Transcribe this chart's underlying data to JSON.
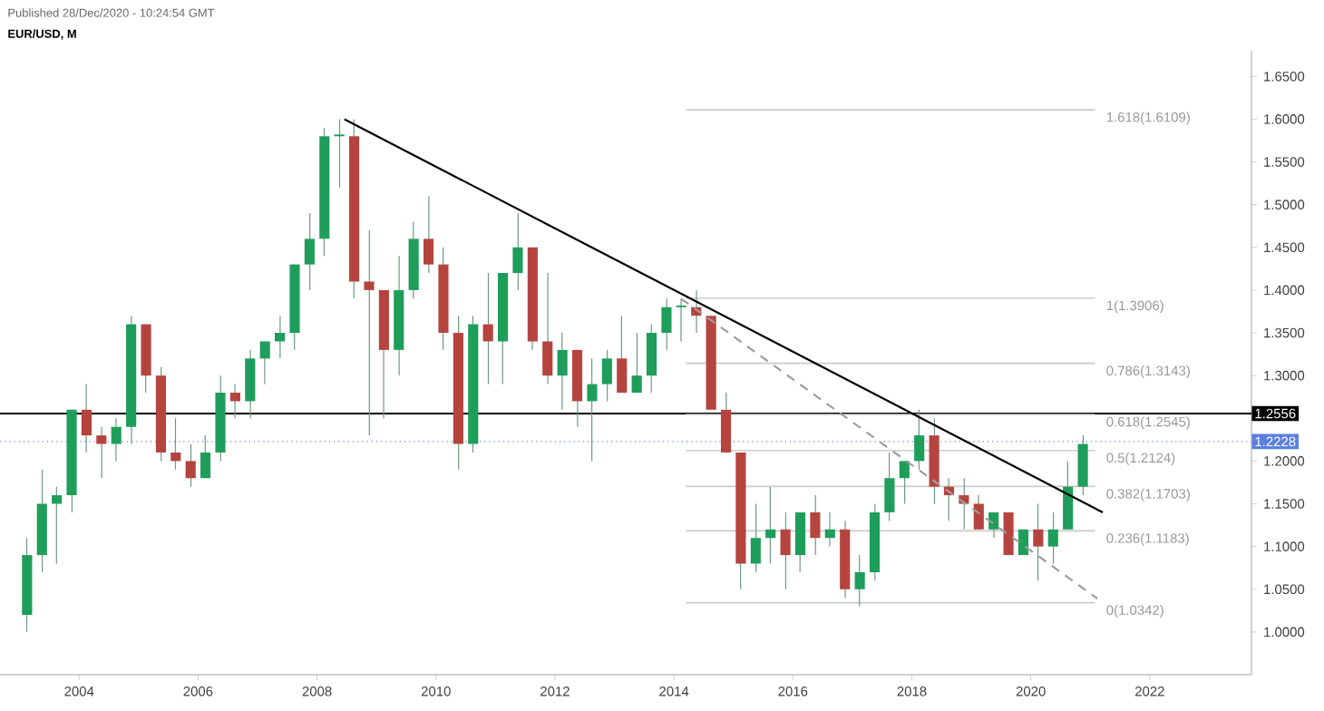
{
  "chart_data": {
    "type": "candlestick",
    "title": "EUR/USD, M",
    "annotations": [
      "Published 28/Dec/2020 - 10:24:54 GMT"
    ],
    "x": [
      "2003-02",
      "2003-05",
      "2003-08",
      "2003-11",
      "2004-02",
      "2004-05",
      "2004-08",
      "2004-11",
      "2005-02",
      "2005-05",
      "2005-08",
      "2005-11",
      "2006-02",
      "2006-05",
      "2006-08",
      "2006-11",
      "2007-02",
      "2007-05",
      "2007-08",
      "2007-11",
      "2008-02",
      "2008-05",
      "2008-08",
      "2008-11",
      "2009-02",
      "2009-05",
      "2009-08",
      "2009-11",
      "2010-02",
      "2010-05",
      "2010-08",
      "2010-11",
      "2011-02",
      "2011-05",
      "2011-08",
      "2011-11",
      "2012-02",
      "2012-05",
      "2012-08",
      "2012-11",
      "2013-02",
      "2013-05",
      "2013-08",
      "2013-11",
      "2014-02",
      "2014-05",
      "2014-08",
      "2014-11",
      "2015-02",
      "2015-05",
      "2015-08",
      "2015-11",
      "2016-02",
      "2016-05",
      "2016-08",
      "2016-11",
      "2017-02",
      "2017-05",
      "2017-08",
      "2017-11",
      "2018-02",
      "2018-05",
      "2018-08",
      "2018-11",
      "2019-02",
      "2019-05",
      "2019-08",
      "2019-11",
      "2020-02",
      "2020-05",
      "2020-08",
      "2020-11"
    ],
    "ohlc": [
      [
        1.02,
        1.11,
        1.0,
        1.09
      ],
      [
        1.09,
        1.19,
        1.07,
        1.15
      ],
      [
        1.15,
        1.17,
        1.08,
        1.16
      ],
      [
        1.16,
        1.26,
        1.14,
        1.26
      ],
      [
        1.26,
        1.29,
        1.21,
        1.23
      ],
      [
        1.23,
        1.24,
        1.18,
        1.22
      ],
      [
        1.22,
        1.25,
        1.2,
        1.24
      ],
      [
        1.24,
        1.37,
        1.22,
        1.36
      ],
      [
        1.36,
        1.36,
        1.28,
        1.3
      ],
      [
        1.3,
        1.31,
        1.2,
        1.21
      ],
      [
        1.21,
        1.25,
        1.19,
        1.2
      ],
      [
        1.2,
        1.22,
        1.17,
        1.18
      ],
      [
        1.18,
        1.23,
        1.18,
        1.21
      ],
      [
        1.21,
        1.3,
        1.2,
        1.28
      ],
      [
        1.28,
        1.29,
        1.25,
        1.27
      ],
      [
        1.27,
        1.33,
        1.25,
        1.32
      ],
      [
        1.32,
        1.34,
        1.29,
        1.34
      ],
      [
        1.34,
        1.37,
        1.32,
        1.35
      ],
      [
        1.35,
        1.43,
        1.33,
        1.43
      ],
      [
        1.43,
        1.49,
        1.4,
        1.46
      ],
      [
        1.46,
        1.59,
        1.44,
        1.58
      ],
      [
        1.58,
        1.6,
        1.52,
        1.58
      ],
      [
        1.58,
        1.6,
        1.39,
        1.41
      ],
      [
        1.41,
        1.47,
        1.23,
        1.4
      ],
      [
        1.4,
        1.4,
        1.25,
        1.33
      ],
      [
        1.33,
        1.44,
        1.3,
        1.4
      ],
      [
        1.4,
        1.48,
        1.39,
        1.46
      ],
      [
        1.46,
        1.51,
        1.42,
        1.43
      ],
      [
        1.43,
        1.45,
        1.33,
        1.35
      ],
      [
        1.35,
        1.37,
        1.19,
        1.22
      ],
      [
        1.22,
        1.37,
        1.21,
        1.36
      ],
      [
        1.36,
        1.42,
        1.29,
        1.34
      ],
      [
        1.34,
        1.42,
        1.29,
        1.42
      ],
      [
        1.42,
        1.49,
        1.4,
        1.45
      ],
      [
        1.45,
        1.45,
        1.33,
        1.34
      ],
      [
        1.34,
        1.42,
        1.29,
        1.3
      ],
      [
        1.3,
        1.35,
        1.26,
        1.33
      ],
      [
        1.33,
        1.33,
        1.24,
        1.27
      ],
      [
        1.27,
        1.32,
        1.2,
        1.29
      ],
      [
        1.29,
        1.33,
        1.27,
        1.32
      ],
      [
        1.32,
        1.37,
        1.28,
        1.28
      ],
      [
        1.28,
        1.35,
        1.28,
        1.3
      ],
      [
        1.3,
        1.36,
        1.28,
        1.35
      ],
      [
        1.35,
        1.39,
        1.33,
        1.38
      ],
      [
        1.38,
        1.39,
        1.34,
        1.38
      ],
      [
        1.38,
        1.4,
        1.35,
        1.37
      ],
      [
        1.37,
        1.37,
        1.26,
        1.26
      ],
      [
        1.26,
        1.28,
        1.21,
        1.21
      ],
      [
        1.21,
        1.21,
        1.05,
        1.08
      ],
      [
        1.08,
        1.15,
        1.07,
        1.11
      ],
      [
        1.11,
        1.17,
        1.08,
        1.12
      ],
      [
        1.12,
        1.14,
        1.05,
        1.09
      ],
      [
        1.09,
        1.14,
        1.07,
        1.14
      ],
      [
        1.14,
        1.16,
        1.09,
        1.11
      ],
      [
        1.11,
        1.14,
        1.1,
        1.12
      ],
      [
        1.12,
        1.13,
        1.04,
        1.05
      ],
      [
        1.05,
        1.09,
        1.03,
        1.07
      ],
      [
        1.07,
        1.15,
        1.06,
        1.14
      ],
      [
        1.14,
        1.21,
        1.13,
        1.18
      ],
      [
        1.18,
        1.2,
        1.15,
        1.2
      ],
      [
        1.2,
        1.26,
        1.19,
        1.23
      ],
      [
        1.23,
        1.25,
        1.15,
        1.17
      ],
      [
        1.17,
        1.18,
        1.13,
        1.16
      ],
      [
        1.16,
        1.18,
        1.12,
        1.15
      ],
      [
        1.15,
        1.16,
        1.12,
        1.12
      ],
      [
        1.12,
        1.14,
        1.11,
        1.14
      ],
      [
        1.14,
        1.14,
        1.09,
        1.09
      ],
      [
        1.09,
        1.12,
        1.09,
        1.12
      ],
      [
        1.12,
        1.15,
        1.06,
        1.1
      ],
      [
        1.1,
        1.14,
        1.08,
        1.12
      ],
      [
        1.12,
        1.2,
        1.12,
        1.17
      ],
      [
        1.17,
        1.23,
        1.16,
        1.22
      ]
    ],
    "series": [
      {
        "type": "line",
        "x": [
          "2008-06",
          "2021-03"
        ],
        "values": [
          1.6,
          1.14
        ],
        "color": "#000000",
        "line_style": "solid"
      },
      {
        "type": "line",
        "x": [
          "2014-02",
          "2021-02"
        ],
        "values": [
          1.39,
          1.039
        ],
        "color": "#9e9e9e",
        "line_style": "dashed"
      }
    ],
    "ref_lines": [
      {
        "axis": "y",
        "value": 1.2556,
        "label": "1.2556",
        "color": "#000000",
        "line_style": "solid"
      },
      {
        "axis": "y",
        "value": 1.2228,
        "label": "1.2228",
        "color": "#5b7fe0",
        "line_style": "dotted"
      },
      {
        "axis": "y",
        "value": 1.6109,
        "label": "1.618(1.6109)",
        "color": "#cccccc"
      },
      {
        "axis": "y",
        "value": 1.3906,
        "label": "1(1.3906)",
        "color": "#cccccc"
      },
      {
        "axis": "y",
        "value": 1.3143,
        "label": "0.786(1.3143)",
        "color": "#cccccc"
      },
      {
        "axis": "y",
        "value": 1.2545,
        "label": "0.618(1.2545)",
        "color": "#cccccc"
      },
      {
        "axis": "y",
        "value": 1.2124,
        "label": "0.5(1.2124)",
        "color": "#cccccc"
      },
      {
        "axis": "y",
        "value": 1.1703,
        "label": "0.382(1.1703)",
        "color": "#cccccc"
      },
      {
        "axis": "y",
        "value": 1.1183,
        "label": "0.236(1.1183)",
        "color": "#cccccc"
      },
      {
        "axis": "y",
        "value": 1.0342,
        "label": "0(1.0342)",
        "color": "#cccccc"
      }
    ],
    "xlim": [
      "2002-09",
      "2023-09"
    ],
    "xticks": [
      "2004",
      "2006",
      "2008",
      "2010",
      "2012",
      "2014",
      "2016",
      "2018",
      "2020",
      "2022"
    ],
    "ylim": [
      0.95,
      1.68
    ],
    "yticks": [
      {
        "value": 1.0,
        "label": "1.0000"
      },
      {
        "value": 1.05,
        "label": "1.0500"
      },
      {
        "value": 1.1,
        "label": "1.1000"
      },
      {
        "value": 1.15,
        "label": "1.1500"
      },
      {
        "value": 1.2,
        "label": "1.2000"
      },
      {
        "value": 1.3,
        "label": "1.3000"
      },
      {
        "value": 1.35,
        "label": "1.3500"
      },
      {
        "value": 1.4,
        "label": "1.4000"
      },
      {
        "value": 1.45,
        "label": "1.4500"
      },
      {
        "value": 1.5,
        "label": "1.5000"
      },
      {
        "value": 1.55,
        "label": "1.5500"
      },
      {
        "value": 1.6,
        "label": "1.6000"
      },
      {
        "value": 1.65,
        "label": "1.6500"
      }
    ],
    "grid": false
  }
}
